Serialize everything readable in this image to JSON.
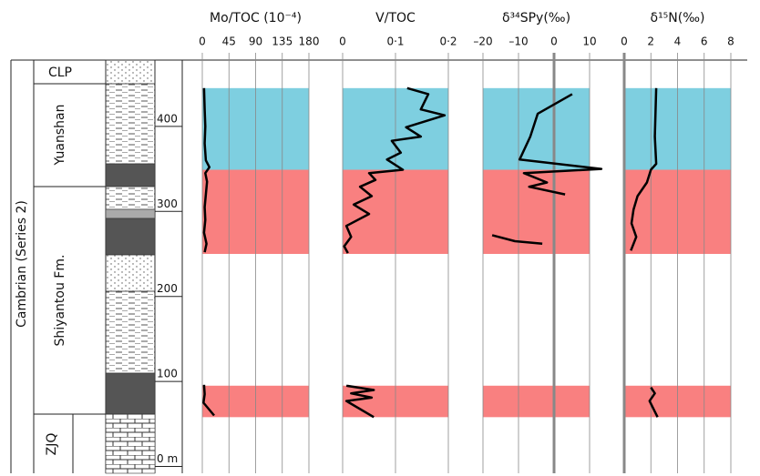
{
  "stratigraphy": {
    "system": "Cambrian (Series 2)",
    "formations": [
      "CLP",
      "Yuanshan",
      "Shiyantou Fm.",
      "ZJQ"
    ]
  },
  "depth_axis": {
    "ylim": [
      -8,
      478
    ],
    "ticks": [
      {
        "value": 0,
        "label": "0 m"
      },
      100,
      200,
      300,
      400
    ]
  },
  "intervals": [
    {
      "color": "#7ecfe0",
      "top": 445,
      "bottom": 349
    },
    {
      "color": "#f98080",
      "top": 349,
      "bottom": 250
    },
    {
      "color": "#f98080",
      "top": 95,
      "bottom": 58
    }
  ],
  "chart_data": [
    {
      "type": "line",
      "title": "Mo/TOC (10⁻⁴)",
      "xlim": [
        0,
        180
      ],
      "xticks": [
        0,
        45,
        90,
        135,
        180
      ],
      "zero_line": false,
      "series": [
        {
          "color": "#000000",
          "values": [
            3,
            4,
            5,
            4,
            6,
            12,
            5,
            8,
            6,
            4,
            5,
            3,
            7,
            4,
            null,
            3,
            4,
            2,
            20
          ],
          "depth": [
            445,
            420,
            400,
            380,
            360,
            352,
            345,
            335,
            320,
            305,
            290,
            275,
            262,
            252,
            null,
            96,
            85,
            75,
            60
          ]
        }
      ]
    },
    {
      "type": "line",
      "title": "V/TOC",
      "xlim": [
        0,
        0.2
      ],
      "xticks": [
        0,
        {
          "value": 0.1,
          "label": "0·1"
        },
        {
          "value": 0.2,
          "label": "0·2"
        }
      ],
      "zero_line": false,
      "series": [
        {
          "color": "#000000",
          "values": [
            0.122,
            0.162,
            0.148,
            0.193,
            0.12,
            0.148,
            0.093,
            0.11,
            0.084,
            0.114,
            0.05,
            0.062,
            0.033,
            0.055,
            0.021,
            0.05,
            0.007,
            0.016,
            0.003,
            0.01,
            null,
            0.007,
            0.059,
            0.016,
            0.055,
            0.007,
            0.059
          ],
          "depth": [
            445,
            438,
            420,
            413,
            399,
            388,
            383,
            369,
            361,
            349,
            345,
            337,
            329,
            318,
            308,
            297,
            283,
            270,
            259,
            251,
            null,
            95,
            90,
            86,
            81,
            77,
            58
          ]
        }
      ]
    },
    {
      "type": "line",
      "title": "δ³⁴SPy(‰)",
      "xlim": [
        -20,
        10
      ],
      "xticks": [
        {
          "value": -20,
          "label": "–20"
        },
        {
          "value": -10,
          "label": "–10"
        },
        0,
        10
      ],
      "zero_line": true,
      "series": [
        {
          "color": "#000000",
          "values": [
            5.1,
            -4.6,
            -6.7,
            -9.7,
            13.3,
            -8.5,
            -2,
            -7,
            3.1,
            null,
            -17.4,
            -11,
            -3.3
          ],
          "depth": [
            438,
            415,
            388,
            361,
            350,
            345,
            334,
            329,
            320,
            null,
            272,
            265,
            262
          ]
        }
      ]
    },
    {
      "type": "line",
      "title": "δ¹⁵N(‰)",
      "xlim": [
        0,
        8
      ],
      "xticks": [
        0,
        2,
        4,
        6,
        8
      ],
      "zero_line": true,
      "series": [
        {
          "color": "#000000",
          "values": [
            2.4,
            2.3,
            2.4,
            2.0,
            1.7,
            1.0,
            0.7,
            0.55,
            0.9,
            0.5,
            null,
            2.0,
            2.3,
            1.9,
            2.5
          ],
          "depth": [
            445,
            388,
            356,
            349,
            334,
            318,
            302,
            286,
            270,
            254,
            null,
            93,
            86,
            77,
            58
          ]
        }
      ]
    }
  ]
}
